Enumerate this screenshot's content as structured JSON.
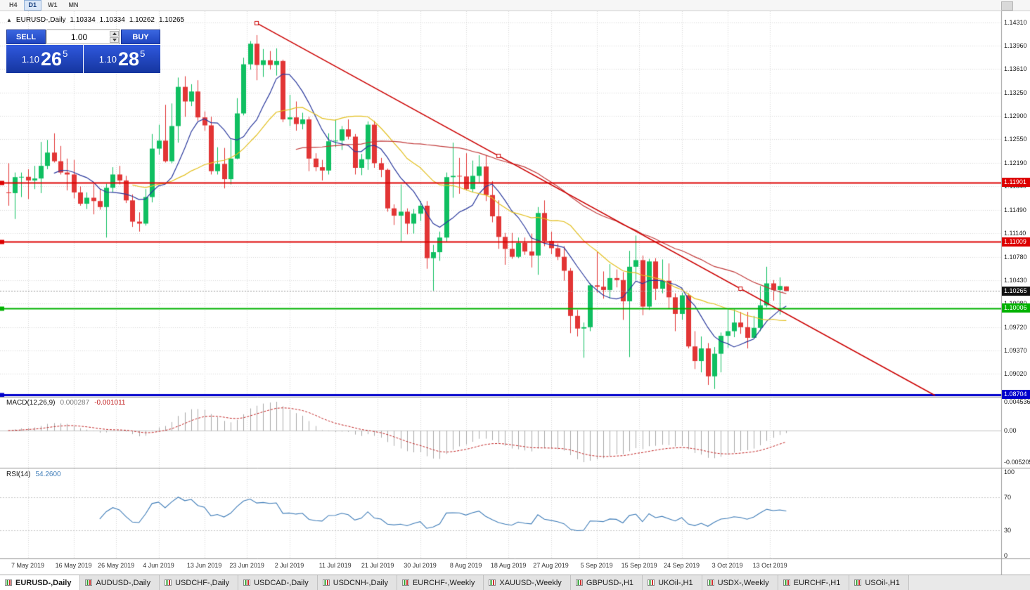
{
  "topbar": {
    "timeframes": [
      {
        "label": "H4",
        "active": false
      },
      {
        "label": "D1",
        "active": true
      },
      {
        "label": "W1",
        "active": false
      },
      {
        "label": "MN",
        "active": false
      }
    ]
  },
  "header": {
    "collapse_icon": "▲",
    "title": "EURUSD-,Daily",
    "open": "1.10334",
    "high": "1.10334",
    "low": "1.10262",
    "close": "1.10265"
  },
  "trade_panel": {
    "sell_label": "SELL",
    "buy_label": "BUY",
    "volume": "1.00",
    "bid": {
      "prefix": "1.10",
      "big": "26",
      "sup": "5"
    },
    "ask": {
      "prefix": "1.10",
      "big": "28",
      "sup": "5"
    }
  },
  "price_axis": {
    "labels": [
      "1.14310",
      "1.13960",
      "1.13610",
      "1.13250",
      "1.12900",
      "1.12550",
      "1.12190",
      "1.11840",
      "1.11490",
      "1.11140",
      "1.10780",
      "1.10430",
      "1.10080",
      "1.09720",
      "1.09370",
      "1.09020"
    ],
    "tags": [
      {
        "text": "1.11901",
        "price": 1.11901,
        "color": "#dd0000"
      },
      {
        "text": "1.11009",
        "price": 1.11009,
        "color": "#dd0000"
      },
      {
        "text": "1.10265",
        "price": 1.10265,
        "color": "#111111"
      },
      {
        "text": "1.10006",
        "price": 1.10006,
        "color": "#00b200"
      },
      {
        "text": "1.08704",
        "price": 1.08704,
        "color": "#0000cc"
      }
    ]
  },
  "macd_panel": {
    "name": "MACD(12,26,9)",
    "value_main": "0.000287",
    "value_signal": "-0.001011",
    "axis_labels": [
      "0.004536",
      "0.00",
      "-0.005205"
    ]
  },
  "rsi_panel": {
    "name": "RSI(14)",
    "value": "54.2600",
    "axis_labels": [
      "100",
      "70",
      "30",
      "0"
    ],
    "levels": [
      70,
      30
    ]
  },
  "date_axis": {
    "labels": [
      "7 May 2019",
      "16 May 2019",
      "26 May 2019",
      "4 Jun 2019",
      "13 Jun 2019",
      "23 Jun 2019",
      "2 Jul 2019",
      "11 Jul 2019",
      "21 Jul 2019",
      "30 Jul 2019",
      "8 Aug 2019",
      "18 Aug 2019",
      "27 Aug 2019",
      "5 Sep 2019",
      "15 Sep 2019",
      "24 Sep 2019",
      "3 Oct 2019",
      "13 Oct 2019"
    ]
  },
  "tabs": [
    {
      "label": "EURUSD-,Daily",
      "active": true
    },
    {
      "label": "AUDUSD-,Daily",
      "active": false
    },
    {
      "label": "USDCHF-,Daily",
      "active": false
    },
    {
      "label": "USDCAD-,Daily",
      "active": false
    },
    {
      "label": "USDCNH-,Daily",
      "active": false
    },
    {
      "label": "EURCHF-,Weekly",
      "active": false
    },
    {
      "label": "XAUUSD-,Weekly",
      "active": false
    },
    {
      "label": "GBPUSD-,H1",
      "active": false
    },
    {
      "label": "UKOil-,H1",
      "active": false
    },
    {
      "label": "USDX-,Weekly",
      "active": false
    },
    {
      "label": "EURCHF-,H1",
      "active": false
    },
    {
      "label": "USOil-,H1",
      "active": false
    }
  ],
  "chart_data": {
    "type": "candlestick",
    "symbol": "EURUSD",
    "timeframe": "Daily",
    "candles": [
      [
        1.1175,
        1.1219,
        1.1155,
        1.1174
      ],
      [
        1.1174,
        1.1205,
        1.1135,
        1.1198
      ],
      [
        1.1198,
        1.1205,
        1.1168,
        1.11985
      ],
      [
        1.11985,
        1.121,
        1.1165,
        1.1193
      ],
      [
        1.1193,
        1.1215,
        1.118,
        1.1196
      ],
      [
        1.1196,
        1.1251,
        1.1174,
        1.1215
      ],
      [
        1.1215,
        1.1254,
        1.121,
        1.1235
      ],
      [
        1.1235,
        1.1264,
        1.122,
        1.1222
      ],
      [
        1.1222,
        1.1245,
        1.1202,
        1.1205
      ],
      [
        1.1205,
        1.1226,
        1.1178,
        1.1202
      ],
      [
        1.1202,
        1.1224,
        1.1166,
        1.1175
      ],
      [
        1.1175,
        1.1184,
        1.1155,
        1.1158
      ],
      [
        1.1158,
        1.1175,
        1.115,
        1.1167
      ],
      [
        1.1167,
        1.1188,
        1.1142,
        1.1162
      ],
      [
        1.1162,
        1.118,
        1.1149,
        1.1153
      ],
      [
        1.1153,
        1.1188,
        1.1107,
        1.1182
      ],
      [
        1.1182,
        1.1213,
        1.1175,
        1.1202
      ],
      [
        1.1202,
        1.1215,
        1.1187,
        1.1193
      ],
      [
        1.1193,
        1.12,
        1.1159,
        1.1163
      ],
      [
        1.1163,
        1.1172,
        1.1123,
        1.1131
      ],
      [
        1.1131,
        1.1145,
        1.1116,
        1.1128
      ],
      [
        1.1128,
        1.118,
        1.1125,
        1.1168
      ],
      [
        1.1168,
        1.1263,
        1.116,
        1.1241
      ],
      [
        1.1241,
        1.1277,
        1.1232,
        1.1253
      ],
      [
        1.1253,
        1.1307,
        1.122,
        1.1222
      ],
      [
        1.1222,
        1.1309,
        1.1219,
        1.1275
      ],
      [
        1.1275,
        1.1348,
        1.125,
        1.1334
      ],
      [
        1.1334,
        1.135,
        1.1289,
        1.1312
      ],
      [
        1.1312,
        1.1338,
        1.1305,
        1.1327
      ],
      [
        1.1327,
        1.1344,
        1.1283,
        1.1288
      ],
      [
        1.1288,
        1.1297,
        1.1268,
        1.1276
      ],
      [
        1.1276,
        1.1289,
        1.1202,
        1.1207
      ],
      [
        1.1207,
        1.1243,
        1.1202,
        1.1218
      ],
      [
        1.1218,
        1.1242,
        1.1181,
        1.1195
      ],
      [
        1.1195,
        1.1255,
        1.1187,
        1.1226
      ],
      [
        1.1226,
        1.1317,
        1.1225,
        1.1294
      ],
      [
        1.1294,
        1.1378,
        1.1291,
        1.1368
      ],
      [
        1.1368,
        1.1403,
        1.136,
        1.1399
      ],
      [
        1.1399,
        1.1412,
        1.1344,
        1.1367
      ],
      [
        1.1367,
        1.1391,
        1.1349,
        1.1374
      ],
      [
        1.1374,
        1.1388,
        1.136,
        1.1367
      ],
      [
        1.1367,
        1.1392,
        1.1351,
        1.1373
      ],
      [
        1.1373,
        1.1375,
        1.1281,
        1.1285
      ],
      [
        1.1285,
        1.1322,
        1.1275,
        1.1288
      ],
      [
        1.1288,
        1.1312,
        1.1268,
        1.1278
      ],
      [
        1.1278,
        1.1295,
        1.127,
        1.1285
      ],
      [
        1.1285,
        1.1289,
        1.1207,
        1.1226
      ],
      [
        1.1226,
        1.1234,
        1.1207,
        1.1213
      ],
      [
        1.1213,
        1.1224,
        1.1193,
        1.1208
      ],
      [
        1.1208,
        1.1264,
        1.1202,
        1.1252
      ],
      [
        1.1252,
        1.1285,
        1.1243,
        1.1253
      ],
      [
        1.1253,
        1.1275,
        1.1239,
        1.127
      ],
      [
        1.127,
        1.1285,
        1.1255,
        1.1259
      ],
      [
        1.1259,
        1.1263,
        1.1202,
        1.1212
      ],
      [
        1.1212,
        1.1233,
        1.1201,
        1.1225
      ],
      [
        1.1225,
        1.1282,
        1.1209,
        1.1277
      ],
      [
        1.1277,
        1.1283,
        1.1212,
        1.1219
      ],
      [
        1.1219,
        1.1227,
        1.1198,
        1.1209
      ],
      [
        1.1209,
        1.1211,
        1.1146,
        1.1151
      ],
      [
        1.1151,
        1.1157,
        1.1126,
        1.114
      ],
      [
        1.114,
        1.1187,
        1.1101,
        1.1146
      ],
      [
        1.1146,
        1.1151,
        1.1112,
        1.1128
      ],
      [
        1.1128,
        1.115,
        1.1113,
        1.1143
      ],
      [
        1.1143,
        1.1162,
        1.1132,
        1.1155
      ],
      [
        1.1155,
        1.1162,
        1.106,
        1.1076
      ],
      [
        1.1076,
        1.1096,
        1.1027,
        1.1085
      ],
      [
        1.1085,
        1.1116,
        1.1072,
        1.1107
      ],
      [
        1.1107,
        1.1205,
        1.1101,
        1.1198
      ],
      [
        1.1198,
        1.125,
        1.1167,
        1.12
      ],
      [
        1.12,
        1.1227,
        1.1173,
        1.1199
      ],
      [
        1.1199,
        1.1234,
        1.1178,
        1.118
      ],
      [
        1.118,
        1.1223,
        1.1175,
        1.12
      ],
      [
        1.12,
        1.1231,
        1.119,
        1.1214
      ],
      [
        1.1214,
        1.123,
        1.1162,
        1.1171
      ],
      [
        1.1171,
        1.1192,
        1.113,
        1.1139
      ],
      [
        1.1139,
        1.1163,
        1.109,
        1.1108
      ],
      [
        1.1108,
        1.1114,
        1.1066,
        1.109
      ],
      [
        1.109,
        1.1114,
        1.1075,
        1.1078
      ],
      [
        1.1078,
        1.1107,
        1.1076,
        1.1099
      ],
      [
        1.1099,
        1.1107,
        1.1081,
        1.1086
      ],
      [
        1.1086,
        1.1113,
        1.1062,
        1.108
      ],
      [
        1.108,
        1.1153,
        1.1051,
        1.1144
      ],
      [
        1.1144,
        1.1163,
        1.1094,
        1.1102
      ],
      [
        1.1102,
        1.1116,
        1.1082,
        1.1091
      ],
      [
        1.1091,
        1.1098,
        1.1073,
        1.1078
      ],
      [
        1.1078,
        1.1094,
        1.1042,
        1.1057
      ],
      [
        1.1057,
        1.1061,
        1.0963,
        1.0989
      ],
      [
        1.0989,
        1.0998,
        1.0958,
        1.097
      ],
      [
        1.097,
        1.0979,
        1.0926,
        1.0972
      ],
      [
        1.0972,
        1.1038,
        1.0966,
        1.1035
      ],
      [
        1.1035,
        1.1085,
        1.1024,
        1.1033
      ],
      [
        1.1033,
        1.1056,
        1.1015,
        1.1028
      ],
      [
        1.1028,
        1.1067,
        1.1015,
        1.1046
      ],
      [
        1.1046,
        1.1059,
        1.1032,
        1.1043
      ],
      [
        1.1043,
        1.1055,
        1.0983,
        1.1011
      ],
      [
        1.1011,
        1.1087,
        1.0927,
        1.1063
      ],
      [
        1.1063,
        1.111,
        1.1043,
        1.1073
      ],
      [
        1.1073,
        1.108,
        1.099,
        1.1003
      ],
      [
        1.1003,
        1.1075,
        1.0998,
        1.1071
      ],
      [
        1.1071,
        1.1076,
        1.1013,
        1.103
      ],
      [
        1.103,
        1.1074,
        1.1023,
        1.1042
      ],
      [
        1.1042,
        1.1068,
        1.1,
        1.1017
      ],
      [
        1.1017,
        1.1023,
        1.0966,
        1.0992
      ],
      [
        1.0992,
        1.1024,
        1.0983,
        1.102
      ],
      [
        1.102,
        1.1023,
        1.094,
        1.0943
      ],
      [
        1.0943,
        1.0966,
        1.0909,
        1.0921
      ],
      [
        1.0921,
        1.0958,
        1.0904,
        1.094
      ],
      [
        1.094,
        1.0948,
        1.0885,
        1.0898
      ],
      [
        1.0898,
        1.0942,
        1.0879,
        1.0932
      ],
      [
        1.0932,
        1.0964,
        1.0904,
        1.0959
      ],
      [
        1.0959,
        1.0999,
        1.0941,
        1.0966
      ],
      [
        1.0966,
        1.0999,
        1.0957,
        1.0979
      ],
      [
        1.0979,
        1.0995,
        1.0962,
        1.0972
      ],
      [
        1.0972,
        1.0995,
        1.094,
        1.0956
      ],
      [
        1.0956,
        1.0989,
        1.0954,
        1.0971
      ],
      [
        1.0971,
        1.1034,
        1.0966,
        1.1005
      ],
      [
        1.1005,
        1.1063,
        1.1002,
        1.1038
      ],
      [
        1.1038,
        1.1043,
        1.1012,
        1.1028
      ],
      [
        1.1028,
        1.1047,
        1.0991,
        1.1034
      ],
      [
        1.10334,
        1.10334,
        1.10262,
        1.10265
      ]
    ],
    "label_indices": [
      3,
      10,
      16.5,
      23,
      30,
      36.5,
      43,
      50,
      56.5,
      63,
      70,
      76.5,
      83,
      90,
      96.5,
      103,
      110,
      116.5
    ],
    "hlines": [
      {
        "price": 1.11901,
        "color": "#dd0000",
        "width": 2
      },
      {
        "price": 1.11009,
        "color": "#dd0000",
        "width": 2
      },
      {
        "price": 1.10006,
        "color": "#00b200",
        "width": 2
      },
      {
        "price": 1.08704,
        "color": "#0000cc",
        "width": 3
      }
    ],
    "current_price": 1.10265,
    "trendline": {
      "i1": 38,
      "p1": 1.143,
      "i2": 112,
      "p2": 1.103,
      "color": "#cc0000"
    },
    "moving_averages": [
      {
        "period": 8,
        "color": "#2b3a9e"
      },
      {
        "period": 20,
        "color": "#e3c01f"
      },
      {
        "period": 45,
        "color": "#c23b3b"
      }
    ],
    "indicators": {
      "macd": {
        "fast": 12,
        "slow": 26,
        "signal": 9
      },
      "rsi": {
        "period": 14
      }
    },
    "colors": {
      "bull": "#0fbf61",
      "bear": "#e23535",
      "grid": "#d9d9d9",
      "macd_hist": "#a9a9a9",
      "macd_signal": "#c22222",
      "rsi": "#3e7cb8",
      "current_price_line": "#999999"
    }
  }
}
